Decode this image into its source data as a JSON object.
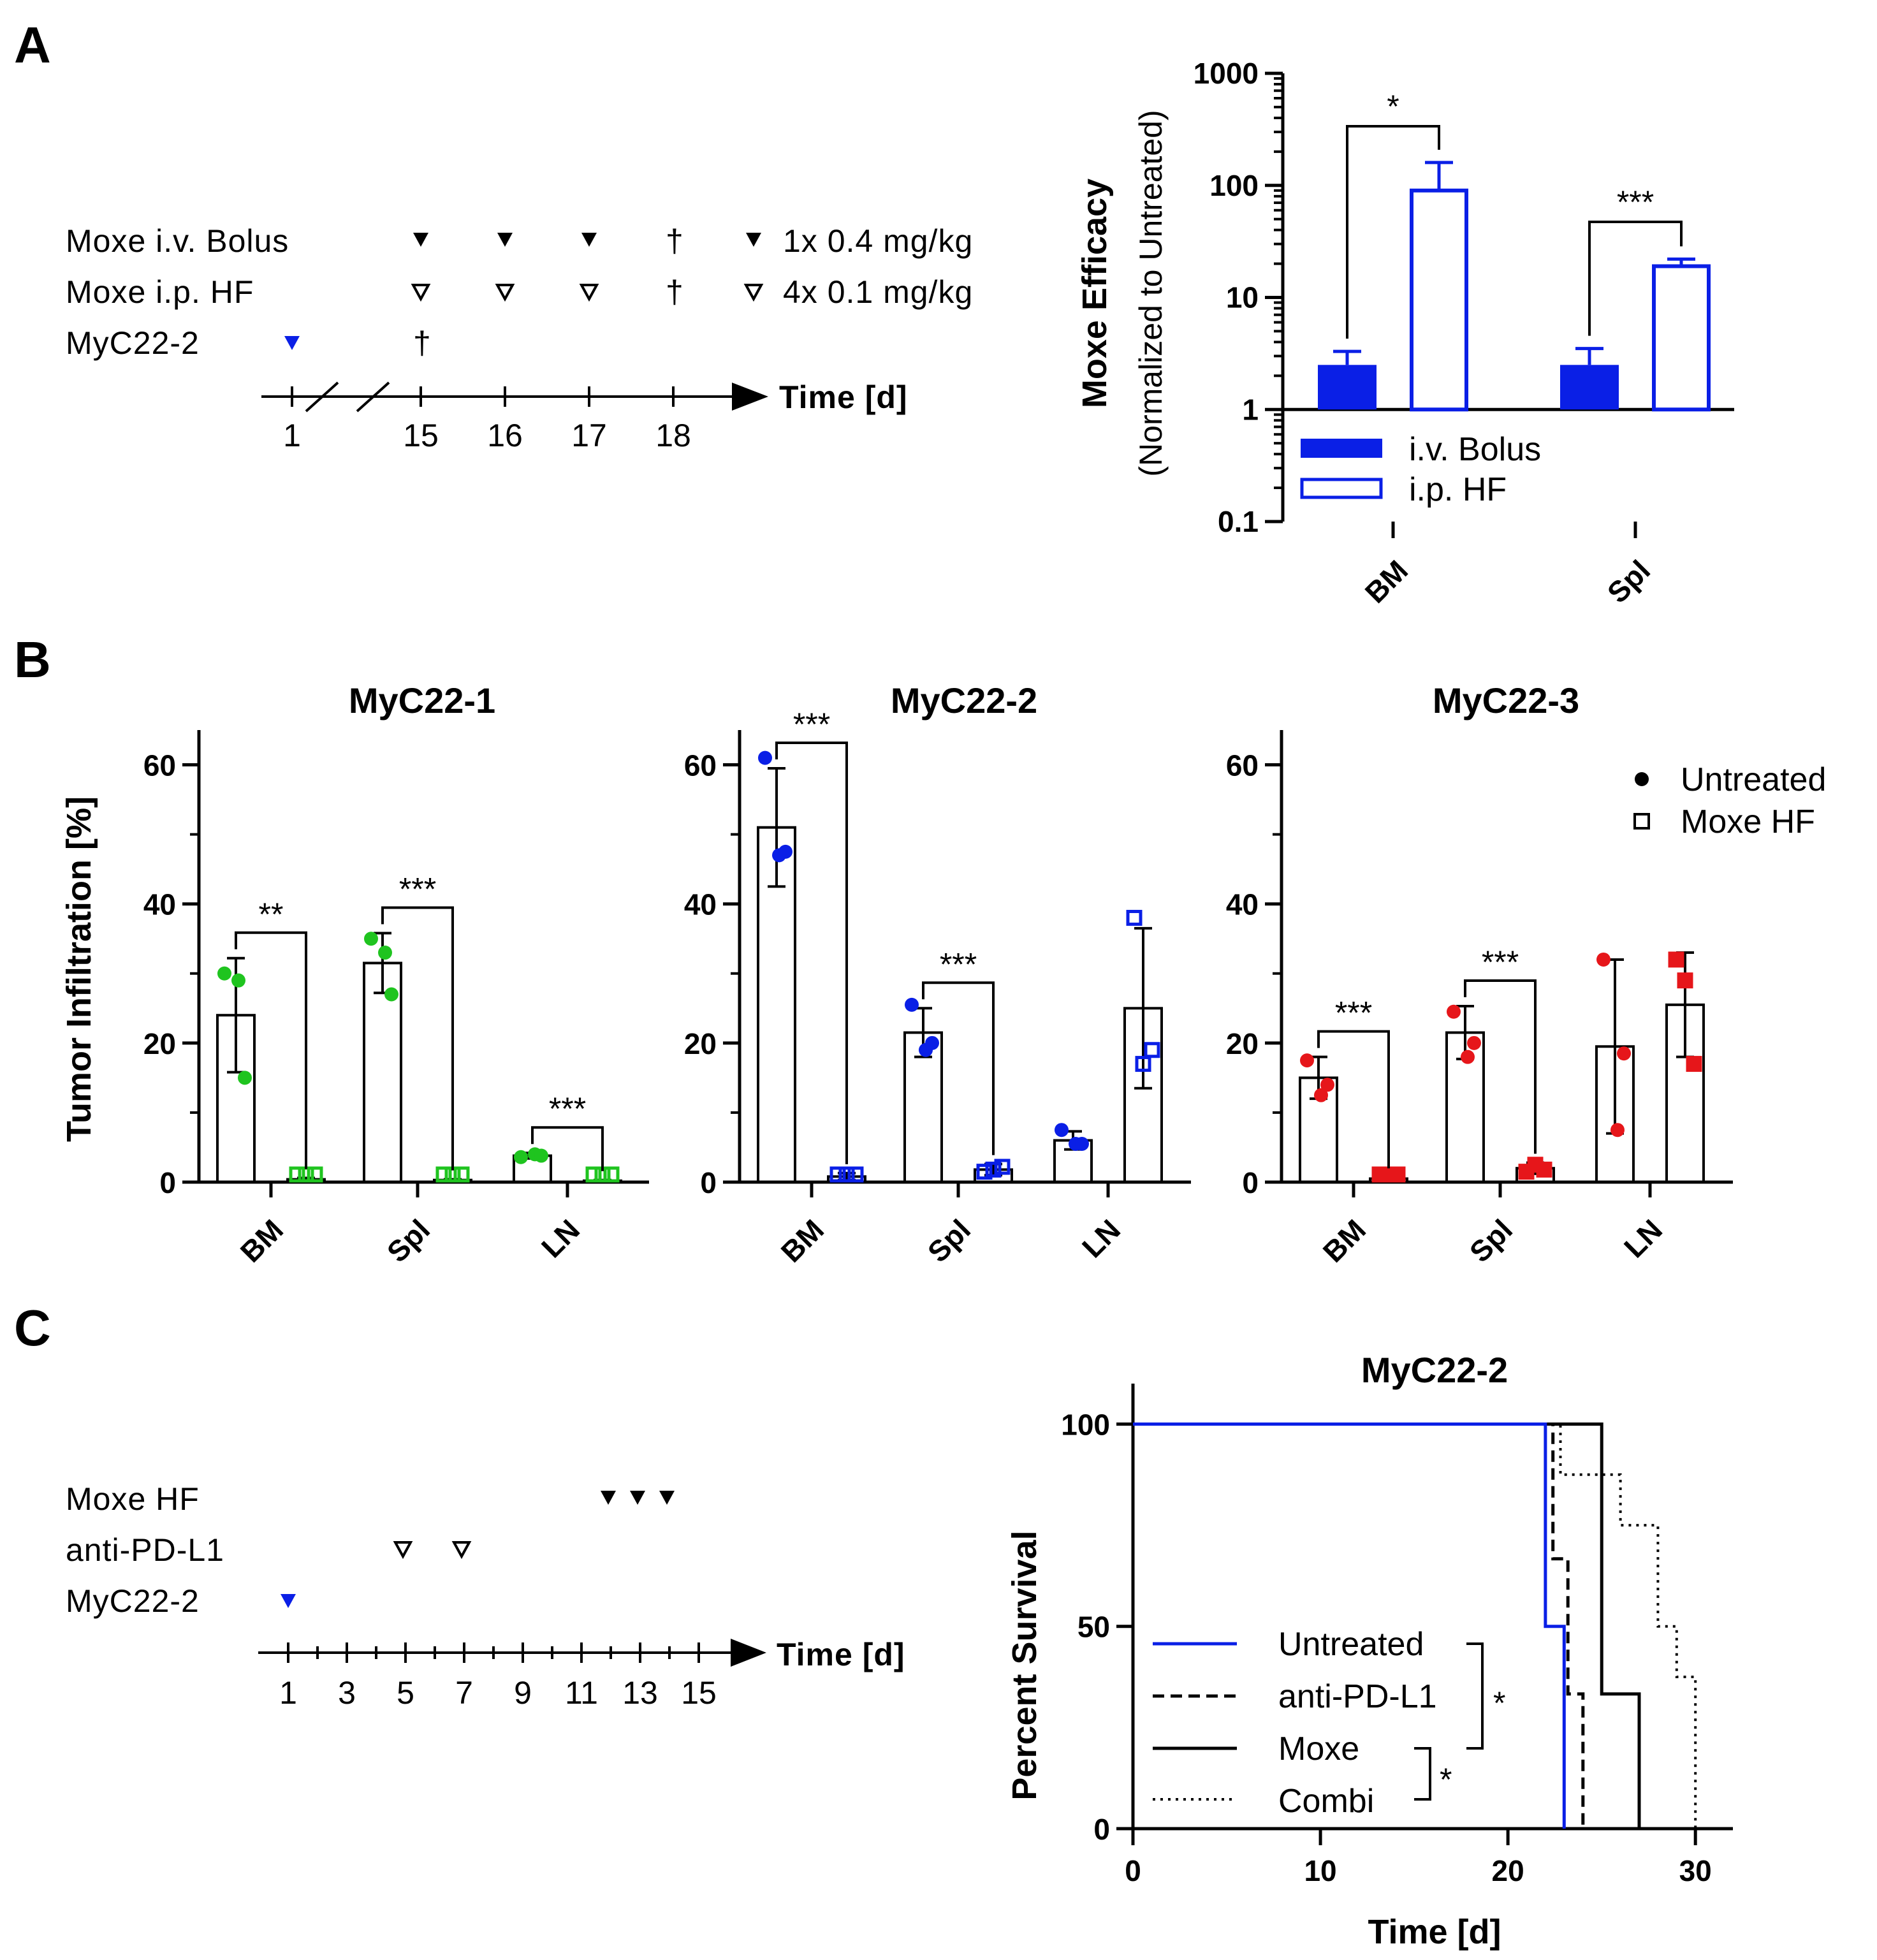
{
  "panel_labels": {
    "a": "A",
    "b": "B",
    "c": "C"
  },
  "colors": {
    "blue": "#0a1fe6",
    "green": "#1fc41f",
    "red": "#e6161a",
    "black": "#000000"
  },
  "panelA": {
    "schedule": {
      "rows": [
        {
          "label": "Moxe i.v. Bolus",
          "dose": "1x 0.4 mg/kg"
        },
        {
          "label": "Moxe i.p. HF",
          "dose": "4x 0.1 mg/kg"
        },
        {
          "label": "MyC22-2",
          "dose": ""
        }
      ],
      "dagger": "†",
      "time_label": "Time [d]",
      "ticks": [
        "1",
        "15",
        "16",
        "17",
        "18"
      ]
    }
  },
  "panelC": {
    "schedule": {
      "rows": [
        {
          "label": "Moxe HF"
        },
        {
          "label": "anti-PD-L1"
        },
        {
          "label": "MyC22-2"
        }
      ],
      "time_label": "Time [d]",
      "ticks": [
        "1",
        "3",
        "5",
        "7",
        "9",
        "11",
        "13",
        "15"
      ]
    }
  },
  "chart_data": [
    {
      "id": "A-efficacy",
      "type": "bar",
      "title": "",
      "ylabel": "Moxe Efficacy",
      "ylabel2": "(Normalized to Untreated)",
      "yscale": "log",
      "ylim": [
        0.1,
        1000
      ],
      "yticks": [
        "0.1",
        "1",
        "10",
        "100",
        "1000"
      ],
      "categories": [
        "BM",
        "Spl"
      ],
      "series": [
        {
          "name": "i.v. Bolus",
          "style": "filled",
          "values": [
            2.5,
            2.5
          ],
          "err": [
            3.3,
            3.5
          ]
        },
        {
          "name": "i.p. HF",
          "style": "open",
          "values": [
            90,
            19
          ],
          "err": [
            160,
            22
          ]
        }
      ],
      "significance": [
        "*",
        "***"
      ],
      "legend_position": "bottom"
    },
    {
      "id": "B-MyC22-1",
      "type": "bar",
      "title": "MyC22-1",
      "ylabel": "Tumor Infiltration [%]",
      "ylim": [
        0,
        65
      ],
      "yticks": [
        "0",
        "20",
        "40",
        "60"
      ],
      "categories": [
        "BM",
        "Spl",
        "LN"
      ],
      "color": "#1fc41f",
      "series": [
        {
          "name": "Untreated",
          "values": [
            24,
            31.5,
            3.8
          ],
          "sd": [
            8.2,
            4.3,
            0.4
          ],
          "points": [
            [
              30,
              29,
              15
            ],
            [
              35,
              33,
              27
            ],
            [
              3.6,
              4.0,
              3.8
            ]
          ]
        },
        {
          "name": "Moxe HF",
          "values": [
            0.4,
            0.3,
            0.2
          ],
          "sd": [
            0.2,
            0.1,
            0.1
          ],
          "points": [
            [
              0.3,
              0.5,
              0.4
            ],
            [
              0.3,
              0.3,
              0.3
            ],
            [
              0.2,
              0.2,
              0.2
            ]
          ]
        }
      ],
      "significance": [
        "**",
        "***",
        "***"
      ]
    },
    {
      "id": "B-MyC22-2",
      "type": "bar",
      "title": "MyC22-2",
      "ylabel": "",
      "ylim": [
        0,
        65
      ],
      "yticks": [
        "0",
        "20",
        "40",
        "60"
      ],
      "categories": [
        "BM",
        "Spl",
        "LN"
      ],
      "color": "#0a1fe6",
      "series": [
        {
          "name": "Untreated",
          "values": [
            51,
            21.5,
            6
          ],
          "sd": [
            8.5,
            3.5,
            1.3
          ],
          "points": [
            [
              61,
              47,
              47.5
            ],
            [
              25.5,
              19,
              20
            ],
            [
              7.5,
              5.5,
              5.5
            ]
          ]
        },
        {
          "name": "Moxe HF",
          "values": [
            0.8,
            1.8,
            25
          ],
          "sd": [
            0.5,
            0.8,
            11.5
          ],
          "points": [
            [
              0.5,
              0.8,
              1.0
            ],
            [
              1.5,
              1.8,
              2.2
            ],
            [
              38,
              17,
              19
            ]
          ]
        }
      ],
      "significance": [
        "***",
        "***",
        ""
      ]
    },
    {
      "id": "B-MyC22-3",
      "type": "bar",
      "title": "MyC22-3",
      "ylabel": "",
      "ylim": [
        0,
        65
      ],
      "yticks": [
        "0",
        "20",
        "40",
        "60"
      ],
      "categories": [
        "BM",
        "Spl",
        "LN"
      ],
      "color": "#e6161a",
      "series": [
        {
          "name": "Untreated",
          "values": [
            15,
            21.5,
            19.5
          ],
          "sd": [
            3,
            3.8,
            12.5
          ],
          "points": [
            [
              17.5,
              12.5,
              14
            ],
            [
              24.5,
              18,
              20
            ],
            [
              32,
              7.5,
              18.5
            ]
          ]
        },
        {
          "name": "Moxe HF",
          "values": [
            0.5,
            2,
            25.5
          ],
          "sd": [
            0.2,
            0.8,
            7.5
          ],
          "points": [
            [
              0.3,
              0.5,
              0.6
            ],
            [
              1.5,
              2.5,
              1.8
            ],
            [
              32,
              29,
              17
            ]
          ]
        }
      ],
      "significance": [
        "***",
        "***",
        ""
      ],
      "legend": [
        "Untreated",
        "Moxe HF"
      ]
    },
    {
      "id": "C-survival",
      "type": "line",
      "title": "MyC22-2",
      "xlabel": "Time [d]",
      "ylabel": "Percent Survival",
      "xlim": [
        0,
        32
      ],
      "ylim": [
        0,
        110
      ],
      "xticks": [
        "0",
        "10",
        "20",
        "30"
      ],
      "yticks": [
        "0",
        "50",
        "100"
      ],
      "series": [
        {
          "name": "Untreated",
          "style": "blue",
          "x": [
            0,
            22,
            22,
            23,
            23
          ],
          "y": [
            100,
            100,
            50,
            50,
            0
          ]
        },
        {
          "name": "anti-PD-L1",
          "style": "dashed",
          "x": [
            0,
            22.4,
            22.4,
            23.2,
            23.2,
            24,
            24
          ],
          "y": [
            100,
            100,
            66.7,
            66.7,
            33.3,
            33.3,
            0
          ]
        },
        {
          "name": "Moxe",
          "style": "solid",
          "x": [
            0,
            25,
            25,
            27,
            27
          ],
          "y": [
            100,
            100,
            33.3,
            33.3,
            0
          ]
        },
        {
          "name": "Combi",
          "style": "dotted",
          "x": [
            0,
            22.8,
            22.8,
            26,
            26,
            28,
            28,
            29,
            29,
            30,
            30
          ],
          "y": [
            100,
            100,
            87.5,
            87.5,
            75,
            75,
            50,
            50,
            37.5,
            37.5,
            0
          ]
        }
      ],
      "significance": [
        "*",
        "*"
      ],
      "legend_position": "bottom-left"
    }
  ]
}
